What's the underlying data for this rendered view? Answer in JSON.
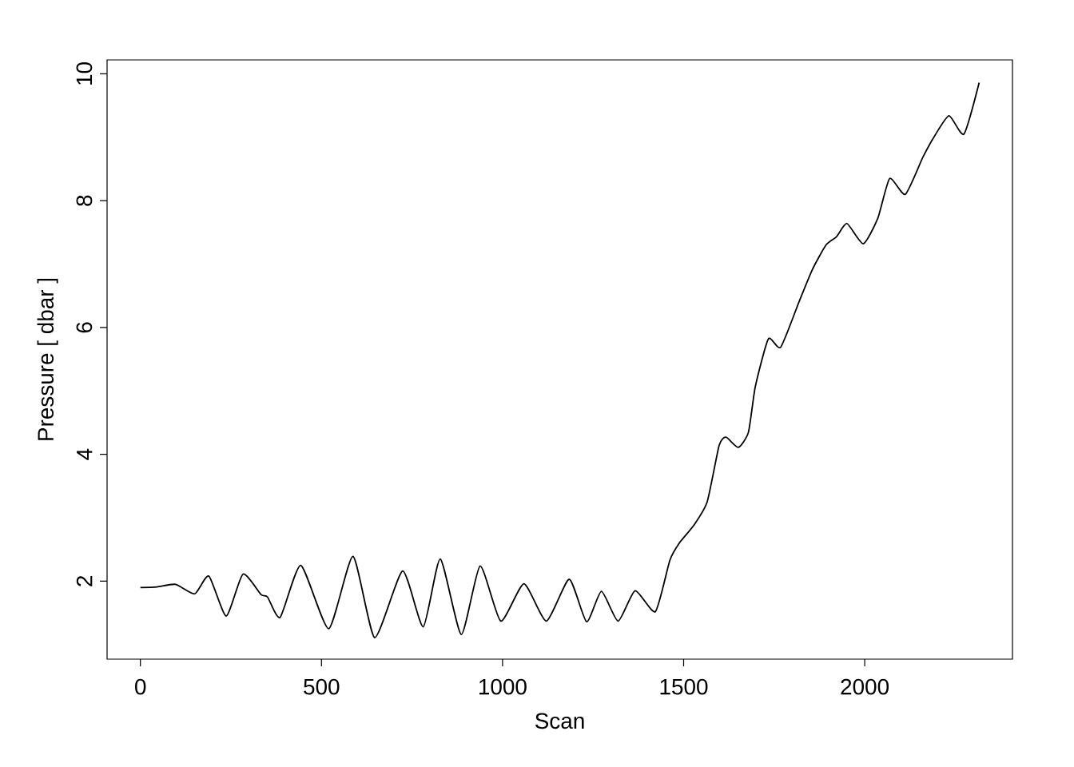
{
  "chart_data": {
    "type": "line",
    "xlabel": "Scan",
    "ylabel": "Pressure [ dbar ]",
    "x": [
      0,
      46,
      97,
      150,
      189,
      237,
      283,
      333,
      351,
      386,
      443,
      520,
      587,
      647,
      724,
      781,
      828,
      886,
      938,
      995,
      1059,
      1121,
      1184,
      1232,
      1273,
      1319,
      1366,
      1422,
      1462,
      1488,
      1528,
      1565,
      1598,
      1617,
      1651,
      1679,
      1698,
      1734,
      1768,
      1819,
      1856,
      1893,
      1922,
      1951,
      1996,
      2036,
      2069,
      2112,
      2161,
      2194,
      2233,
      2274,
      2316
    ],
    "series": [
      {
        "color": "#000000",
        "values": [
          1.9,
          1.91,
          1.95,
          1.8,
          2.08,
          1.45,
          2.11,
          1.79,
          1.75,
          1.43,
          2.25,
          1.25,
          2.39,
          1.11,
          2.16,
          1.28,
          2.35,
          1.16,
          2.24,
          1.37,
          1.96,
          1.37,
          2.03,
          1.36,
          1.84,
          1.37,
          1.85,
          1.52,
          2.33,
          2.6,
          2.88,
          3.25,
          4.14,
          4.27,
          4.11,
          4.35,
          5.07,
          5.82,
          5.69,
          6.41,
          6.92,
          7.3,
          7.43,
          7.64,
          7.32,
          7.72,
          8.35,
          8.1,
          8.69,
          9.03,
          9.34,
          9.05,
          9.86
        ]
      }
    ],
    "xlim": [
      -92,
      2408
    ],
    "ylim": [
      0.77,
      10.22
    ],
    "xticks": [
      0,
      500,
      1000,
      1500,
      2000
    ],
    "yticks": [
      2,
      4,
      6,
      8,
      10
    ],
    "line_style": "solid",
    "marker": "none"
  }
}
